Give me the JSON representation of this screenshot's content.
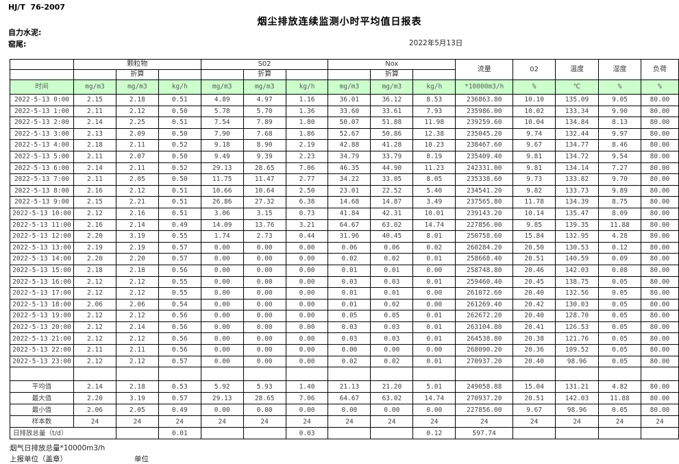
{
  "page": {
    "standard": "HJ/T  76-2007",
    "title": "烟尘排放连续监测小时平均值日报表",
    "company": "自力水泥:",
    "site": "窑尾:",
    "date": "2022年5月13日"
  },
  "colors": {
    "header_green": "#ccffcc",
    "border": "#000000"
  },
  "table": {
    "time_header": "时间",
    "subheader": "折算",
    "groups": {
      "pm": "颗粒物",
      "so2": "S02",
      "nox": "Nox",
      "flow": "流量",
      "o2": "02",
      "temp": "温度",
      "humidity": "湿度",
      "load": "负荷"
    },
    "units": [
      "mg/m3",
      "mg/m3",
      "kg/h",
      "mg/m3",
      "mg/m3",
      "kg/h",
      "mg/m3",
      "mg/m3",
      "kg/h",
      "*10000m3/h",
      "%",
      "℃",
      "%",
      "%"
    ],
    "rows": [
      {
        "time": "2022-5-13 0:00",
        "values": [
          "2.15",
          "2.18",
          "0.51",
          "4.89",
          "4.97",
          "1.16",
          "36.01",
          "36.12",
          "8.53",
          "236863.80",
          "10.10",
          "135.09",
          "9.05",
          "80.00"
        ]
      },
      {
        "time": "2022-5-13 1:00",
        "values": [
          "2.11",
          "2.12",
          "0.50",
          "5.78",
          "5.70",
          "1.36",
          "33.60",
          "33.61",
          "7.93",
          "235986.00",
          "10.02",
          "133.34",
          "9.90",
          "80.00"
        ]
      },
      {
        "time": "2022-5-13 2:00",
        "values": [
          "2.14",
          "2.25",
          "0.51",
          "7.54",
          "7.89",
          "1.80",
          "50.07",
          "51.88",
          "11.98",
          "239259.60",
          "10.04",
          "134.84",
          "8.13",
          "80.00"
        ]
      },
      {
        "time": "2022-5-13 3:00",
        "values": [
          "2.13",
          "2.09",
          "0.50",
          "7.90",
          "7.68",
          "1.86",
          "52.67",
          "50.86",
          "12.38",
          "235045.20",
          "9.74",
          "132.44",
          "9.97",
          "80.00"
        ]
      },
      {
        "time": "2022-5-13 4:00",
        "values": [
          "2.18",
          "2.11",
          "0.52",
          "9.18",
          "8.90",
          "2.19",
          "42.88",
          "41.28",
          "10.23",
          "238467.60",
          "9.67",
          "134.77",
          "8.46",
          "80.00"
        ]
      },
      {
        "time": "2022-5-13 5:00",
        "values": [
          "2.11",
          "2.07",
          "0.50",
          "9.49",
          "9.39",
          "2.23",
          "34.79",
          "33.79",
          "8.19",
          "235409.40",
          "9.81",
          "134.72",
          "9.54",
          "80.00"
        ]
      },
      {
        "time": "2022-5-13 6:00",
        "values": [
          "2.14",
          "2.11",
          "0.52",
          "29.13",
          "28.65",
          "7.06",
          "46.35",
          "44.90",
          "11.23",
          "242331.00",
          "9.81",
          "134.14",
          "7.27",
          "80.00"
        ]
      },
      {
        "time": "2022-5-13 7:00",
        "values": [
          "2.11",
          "2.05",
          "0.50",
          "11.75",
          "11.47",
          "2.77",
          "34.22",
          "33.05",
          "8.05",
          "235338.60",
          "9.73",
          "133.82",
          "9.70",
          "80.00"
        ]
      },
      {
        "time": "2022-5-13 8:00",
        "values": [
          "2.16",
          "2.12",
          "0.51",
          "10.66",
          "10.64",
          "2.50",
          "23.01",
          "22.52",
          "5.40",
          "234541.20",
          "9.82",
          "133.73",
          "9.89",
          "80.00"
        ]
      },
      {
        "time": "2022-5-13 9:00",
        "values": [
          "2.15",
          "2.21",
          "0.51",
          "26.86",
          "27.32",
          "6.38",
          "14.68",
          "14.87",
          "3.49",
          "237565.80",
          "11.78",
          "134.39",
          "8.75",
          "80.00"
        ]
      },
      {
        "time": "2022-5-13 10:00",
        "values": [
          "2.12",
          "2.16",
          "0.51",
          "3.06",
          "3.15",
          "0.73",
          "41.84",
          "42.31",
          "10.01",
          "239143.20",
          "10.14",
          "135.47",
          "8.09",
          "80.00"
        ]
      },
      {
        "time": "2022-5-13 11:00",
        "values": [
          "2.16",
          "2.14",
          "0.49",
          "14.09",
          "13.76",
          "3.21",
          "64.67",
          "63.02",
          "14.74",
          "227856.00",
          "9.85",
          "139.35",
          "11.88",
          "80.00"
        ]
      },
      {
        "time": "2022-5-13 12:00",
        "values": [
          "2.20",
          "3.19",
          "0.55",
          "1.74",
          "2.73",
          "0.44",
          "31.96",
          "40.45",
          "8.01",
          "250758.60",
          "15.84",
          "132.95",
          "4.28",
          "80.00"
        ]
      },
      {
        "time": "2022-5-13 13:00",
        "values": [
          "2.19",
          "2.19",
          "0.57",
          "0.00",
          "0.00",
          "0.00",
          "0.06",
          "0.06",
          "0.02",
          "260284.20",
          "20.50",
          "130.53",
          "0.12",
          "80.00"
        ]
      },
      {
        "time": "2022-5-13 14:00",
        "values": [
          "2.20",
          "2.20",
          "0.57",
          "0.00",
          "0.00",
          "0.00",
          "0.02",
          "0.02",
          "0.01",
          "258668.40",
          "20.51",
          "140.59",
          "0.09",
          "80.00"
        ]
      },
      {
        "time": "2022-5-13 15:00",
        "values": [
          "2.18",
          "2.18",
          "0.56",
          "0.00",
          "0.00",
          "0.00",
          "0.01",
          "0.01",
          "0.00",
          "258748.80",
          "20.46",
          "142.03",
          "0.08",
          "80.00"
        ]
      },
      {
        "time": "2022-5-13 16:00",
        "values": [
          "2.12",
          "2.12",
          "0.55",
          "0.00",
          "0.00",
          "0.00",
          "0.03",
          "0.03",
          "0.01",
          "259460.40",
          "20.45",
          "138.75",
          "0.05",
          "80.00"
        ]
      },
      {
        "time": "2022-5-13 17:00",
        "values": [
          "2.12",
          "2.12",
          "0.55",
          "0.00",
          "0.00",
          "0.00",
          "0.01",
          "0.01",
          "0.00",
          "261072.60",
          "20.40",
          "132.56",
          "0.05",
          "80.00"
        ]
      },
      {
        "time": "2022-5-13 18:00",
        "values": [
          "2.06",
          "2.06",
          "0.54",
          "0.00",
          "0.00",
          "0.00",
          "0.01",
          "0.02",
          "0.00",
          "261269.40",
          "20.42",
          "130.03",
          "0.05",
          "80.00"
        ]
      },
      {
        "time": "2022-5-13 19:00",
        "values": [
          "2.12",
          "2.12",
          "0.56",
          "0.00",
          "0.00",
          "0.00",
          "0.05",
          "0.05",
          "0.01",
          "262672.20",
          "20.40",
          "128.70",
          "0.05",
          "80.00"
        ]
      },
      {
        "time": "2022-5-13 20:00",
        "values": [
          "2.12",
          "2.14",
          "0.56",
          "0.00",
          "0.00",
          "0.00",
          "0.03",
          "0.03",
          "0.01",
          "263104.80",
          "20.41",
          "126.53",
          "0.05",
          "80.00"
        ]
      },
      {
        "time": "2022-5-13 21:00",
        "values": [
          "2.12",
          "2.12",
          "0.56",
          "0.00",
          "0.00",
          "0.00",
          "0.03",
          "0.03",
          "0.01",
          "264538.80",
          "20.38",
          "121.76",
          "0.05",
          "80.00"
        ]
      },
      {
        "time": "2022-5-13 22:00",
        "values": [
          "2.11",
          "2.11",
          "0.56",
          "0.00",
          "0.00",
          "0.00",
          "0.00",
          "0.00",
          "0.00",
          "268090.20",
          "20.36",
          "109.52",
          "0.05",
          "80.00"
        ]
      },
      {
        "time": "2022-5-13 23:00",
        "values": [
          "2.12",
          "2.12",
          "0.57",
          "0.00",
          "0.00",
          "0.00",
          "0.02",
          "0.02",
          "0.01",
          "270937.20",
          "20.40",
          "98.96",
          "0.05",
          "80.00"
        ]
      }
    ],
    "summary": [
      {
        "label": "平均值",
        "values": [
          "2.14",
          "2.18",
          "0.53",
          "5.92",
          "5.93",
          "1.40",
          "21.13",
          "21.20",
          "5.01",
          "249058.88",
          "15.04",
          "131.21",
          "4.82",
          "80.00"
        ]
      },
      {
        "label": "最大值",
        "values": [
          "2.20",
          "3.19",
          "0.57",
          "29.13",
          "28.65",
          "7.06",
          "64.67",
          "63.02",
          "14.74",
          "270937.20",
          "20.51",
          "142.03",
          "11.88",
          "80.00"
        ]
      },
      {
        "label": "最小值",
        "values": [
          "2.06",
          "2.05",
          "0.49",
          "0.00",
          "0.00",
          "0.00",
          "0.00",
          "0.00",
          "0.00",
          "227856.00",
          "9.67",
          "98.96",
          "0.05",
          "80.00"
        ]
      },
      {
        "label": "样本数",
        "values": [
          "24",
          "24",
          "24",
          "24",
          "24",
          "24",
          "24",
          "24",
          "24",
          "24",
          "24",
          "24",
          "24",
          "24"
        ]
      }
    ],
    "daily_total": {
      "label": "日排放总量（t/d）",
      "values": [
        "",
        "0.01",
        "",
        "",
        "0.03",
        "",
        "",
        "0.12",
        "597.74",
        "",
        "",
        "",
        ""
      ]
    }
  },
  "footer": {
    "note": "烟气日排放总量*10000m3/h",
    "report_unit": "上报单位（盖章）",
    "unit": "单位"
  }
}
